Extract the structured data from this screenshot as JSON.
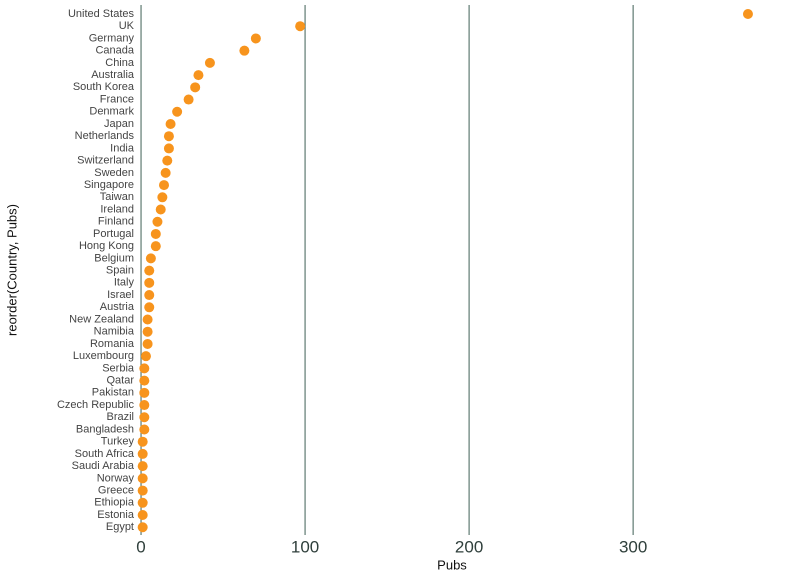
{
  "chart_data": {
    "type": "dot",
    "categories": [
      "United States",
      "UK",
      "Germany",
      "Canada",
      "China",
      "Australia",
      "South Korea",
      "France",
      "Denmark",
      "Japan",
      "Netherlands",
      "India",
      "Switzerland",
      "Sweden",
      "Singapore",
      "Taiwan",
      "Ireland",
      "Finland",
      "Portugal",
      "Hong Kong",
      "Belgium",
      "Spain",
      "Italy",
      "Israel",
      "Austria",
      "New Zealand",
      "Namibia",
      "Romania",
      "Luxembourg",
      "Serbia",
      "Qatar",
      "Pakistan",
      "Czech Republic",
      "Brazil",
      "Bangladesh",
      "Turkey",
      "South Africa",
      "Saudi Arabia",
      "Norway",
      "Greece",
      "Ethiopia",
      "Estonia",
      "Egypt"
    ],
    "values": [
      370,
      97,
      70,
      63,
      42,
      35,
      33,
      29,
      22,
      18,
      17,
      17,
      16,
      15,
      14,
      13,
      12,
      10,
      9,
      9,
      6,
      5,
      5,
      5,
      5,
      4,
      4,
      4,
      3,
      2,
      2,
      2,
      2,
      2,
      2,
      1,
      1,
      1,
      1,
      1,
      1,
      1,
      1
    ],
    "color": "#f7941d",
    "xlim": [
      -11,
      381
    ],
    "xticks": [
      0,
      100,
      200,
      300
    ],
    "xlabel": "Pubs",
    "ylabel": "reorder(Country, Pubs)",
    "grid": true,
    "grid_color": "#5f7a72"
  }
}
